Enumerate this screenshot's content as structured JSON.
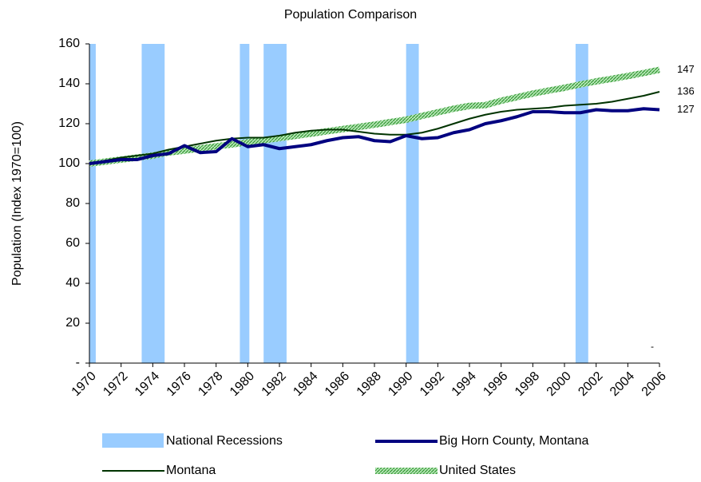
{
  "chart_data": {
    "type": "line",
    "title": "Population Comparison",
    "y_label": "Population (Index 1970=100)",
    "x": [
      1970,
      1971,
      1972,
      1973,
      1974,
      1975,
      1976,
      1977,
      1978,
      1979,
      1980,
      1981,
      1982,
      1983,
      1984,
      1985,
      1986,
      1987,
      1988,
      1989,
      1990,
      1991,
      1992,
      1993,
      1994,
      1995,
      1996,
      1997,
      1998,
      1999,
      2000,
      2001,
      2002,
      2003,
      2004,
      2005,
      2006
    ],
    "xlim": [
      1970,
      2006
    ],
    "xticks": [
      1970,
      1972,
      1974,
      1976,
      1978,
      1980,
      1982,
      1984,
      1986,
      1988,
      1990,
      1992,
      1994,
      1996,
      1998,
      2000,
      2002,
      2004,
      2006
    ],
    "ylim": [
      0,
      160
    ],
    "yticks": [
      {
        "value": 0,
        "label": "-"
      },
      20,
      40,
      60,
      80,
      100,
      120,
      140,
      160
    ],
    "recessions": {
      "name": "National Recessions",
      "color": "#99ccff",
      "ranges": [
        [
          1970,
          1970.4
        ],
        [
          1973.3,
          1974.75
        ],
        [
          1979.5,
          1980.1
        ],
        [
          1981,
          1982.45
        ],
        [
          1990,
          1990.8
        ],
        [
          2000.7,
          2001.5
        ]
      ]
    },
    "series": [
      {
        "name": "Big Horn County, Montana",
        "color": "#000080",
        "width": 4,
        "values": [
          100,
          101,
          102,
          102,
          104,
          105,
          109,
          105.5,
          106,
          112.5,
          108.5,
          109.5,
          107.5,
          108.5,
          109.5,
          111.5,
          113,
          113.5,
          111.5,
          111,
          114,
          112.5,
          113,
          115.5,
          117,
          120,
          121.5,
          123.5,
          126,
          126,
          125.5,
          125.5,
          127,
          126.5,
          126.5,
          127.5,
          127
        ]
      },
      {
        "name": "Montana",
        "color": "#003300",
        "width": 2,
        "values": [
          100,
          101.5,
          103,
          104,
          105,
          107,
          108.5,
          110,
          111.5,
          112.5,
          113,
          113,
          114,
          115.5,
          116.5,
          117,
          117,
          116,
          115,
          114.5,
          114.5,
          115.5,
          117.5,
          120,
          122.5,
          124.5,
          126,
          127,
          127.5,
          128,
          129,
          129.5,
          130,
          131,
          132.5,
          134,
          136
        ]
      },
      {
        "name": "United States",
        "color": "#66bb66",
        "width": 8,
        "hatched": true,
        "values": [
          100,
          101,
          102,
          103,
          104,
          105.6,
          106.5,
          107.6,
          108.7,
          109.6,
          110.7,
          111.7,
          112.8,
          113.9,
          115,
          116.2,
          117.3,
          118.4,
          119.5,
          120.8,
          122,
          123.9,
          125.7,
          127.5,
          128.9,
          129.3,
          131.5,
          133.3,
          135.1,
          136.6,
          138,
          139.7,
          141.2,
          142.5,
          143.9,
          145.4,
          147
        ]
      }
    ],
    "annotation": "-"
  }
}
